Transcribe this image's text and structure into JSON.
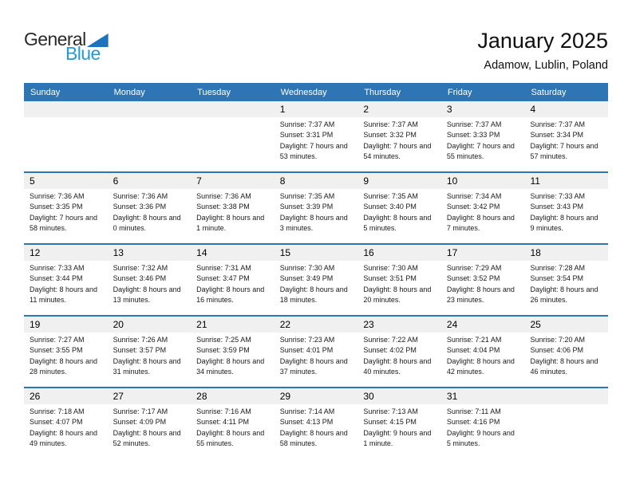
{
  "logo": {
    "general": "General",
    "blue": "Blue"
  },
  "header": {
    "title": "January 2025",
    "subtitle": "Adamow, Lublin, Poland"
  },
  "colors": {
    "header_blue": "#2e75b6",
    "row_divider_blue": "#2e75b6",
    "day_strip_gray": "#f0f0f0",
    "logo_triangle_blue": "#1c75bc",
    "logo_blue_text": "#2499d6"
  },
  "calendar": {
    "weekdays": [
      "Sunday",
      "Monday",
      "Tuesday",
      "Wednesday",
      "Thursday",
      "Friday",
      "Saturday"
    ],
    "weeks": [
      {
        "days": [
          null,
          null,
          null,
          {
            "day": "1",
            "sunrise": "Sunrise: 7:37 AM",
            "sunset": "Sunset: 3:31 PM",
            "daylight": "Daylight: 7 hours and 53 minutes."
          },
          {
            "day": "2",
            "sunrise": "Sunrise: 7:37 AM",
            "sunset": "Sunset: 3:32 PM",
            "daylight": "Daylight: 7 hours and 54 minutes."
          },
          {
            "day": "3",
            "sunrise": "Sunrise: 7:37 AM",
            "sunset": "Sunset: 3:33 PM",
            "daylight": "Daylight: 7 hours and 55 minutes."
          },
          {
            "day": "4",
            "sunrise": "Sunrise: 7:37 AM",
            "sunset": "Sunset: 3:34 PM",
            "daylight": "Daylight: 7 hours and 57 minutes."
          }
        ]
      },
      {
        "days": [
          {
            "day": "5",
            "sunrise": "Sunrise: 7:36 AM",
            "sunset": "Sunset: 3:35 PM",
            "daylight": "Daylight: 7 hours and 58 minutes."
          },
          {
            "day": "6",
            "sunrise": "Sunrise: 7:36 AM",
            "sunset": "Sunset: 3:36 PM",
            "daylight": "Daylight: 8 hours and 0 minutes."
          },
          {
            "day": "7",
            "sunrise": "Sunrise: 7:36 AM",
            "sunset": "Sunset: 3:38 PM",
            "daylight": "Daylight: 8 hours and 1 minute."
          },
          {
            "day": "8",
            "sunrise": "Sunrise: 7:35 AM",
            "sunset": "Sunset: 3:39 PM",
            "daylight": "Daylight: 8 hours and 3 minutes."
          },
          {
            "day": "9",
            "sunrise": "Sunrise: 7:35 AM",
            "sunset": "Sunset: 3:40 PM",
            "daylight": "Daylight: 8 hours and 5 minutes."
          },
          {
            "day": "10",
            "sunrise": "Sunrise: 7:34 AM",
            "sunset": "Sunset: 3:42 PM",
            "daylight": "Daylight: 8 hours and 7 minutes."
          },
          {
            "day": "11",
            "sunrise": "Sunrise: 7:33 AM",
            "sunset": "Sunset: 3:43 PM",
            "daylight": "Daylight: 8 hours and 9 minutes."
          }
        ]
      },
      {
        "days": [
          {
            "day": "12",
            "sunrise": "Sunrise: 7:33 AM",
            "sunset": "Sunset: 3:44 PM",
            "daylight": "Daylight: 8 hours and 11 minutes."
          },
          {
            "day": "13",
            "sunrise": "Sunrise: 7:32 AM",
            "sunset": "Sunset: 3:46 PM",
            "daylight": "Daylight: 8 hours and 13 minutes."
          },
          {
            "day": "14",
            "sunrise": "Sunrise: 7:31 AM",
            "sunset": "Sunset: 3:47 PM",
            "daylight": "Daylight: 8 hours and 16 minutes."
          },
          {
            "day": "15",
            "sunrise": "Sunrise: 7:30 AM",
            "sunset": "Sunset: 3:49 PM",
            "daylight": "Daylight: 8 hours and 18 minutes."
          },
          {
            "day": "16",
            "sunrise": "Sunrise: 7:30 AM",
            "sunset": "Sunset: 3:51 PM",
            "daylight": "Daylight: 8 hours and 20 minutes."
          },
          {
            "day": "17",
            "sunrise": "Sunrise: 7:29 AM",
            "sunset": "Sunset: 3:52 PM",
            "daylight": "Daylight: 8 hours and 23 minutes."
          },
          {
            "day": "18",
            "sunrise": "Sunrise: 7:28 AM",
            "sunset": "Sunset: 3:54 PM",
            "daylight": "Daylight: 8 hours and 26 minutes."
          }
        ]
      },
      {
        "days": [
          {
            "day": "19",
            "sunrise": "Sunrise: 7:27 AM",
            "sunset": "Sunset: 3:55 PM",
            "daylight": "Daylight: 8 hours and 28 minutes."
          },
          {
            "day": "20",
            "sunrise": "Sunrise: 7:26 AM",
            "sunset": "Sunset: 3:57 PM",
            "daylight": "Daylight: 8 hours and 31 minutes."
          },
          {
            "day": "21",
            "sunrise": "Sunrise: 7:25 AM",
            "sunset": "Sunset: 3:59 PM",
            "daylight": "Daylight: 8 hours and 34 minutes."
          },
          {
            "day": "22",
            "sunrise": "Sunrise: 7:23 AM",
            "sunset": "Sunset: 4:01 PM",
            "daylight": "Daylight: 8 hours and 37 minutes."
          },
          {
            "day": "23",
            "sunrise": "Sunrise: 7:22 AM",
            "sunset": "Sunset: 4:02 PM",
            "daylight": "Daylight: 8 hours and 40 minutes."
          },
          {
            "day": "24",
            "sunrise": "Sunrise: 7:21 AM",
            "sunset": "Sunset: 4:04 PM",
            "daylight": "Daylight: 8 hours and 42 minutes."
          },
          {
            "day": "25",
            "sunrise": "Sunrise: 7:20 AM",
            "sunset": "Sunset: 4:06 PM",
            "daylight": "Daylight: 8 hours and 46 minutes."
          }
        ]
      },
      {
        "days": [
          {
            "day": "26",
            "sunrise": "Sunrise: 7:18 AM",
            "sunset": "Sunset: 4:07 PM",
            "daylight": "Daylight: 8 hours and 49 minutes."
          },
          {
            "day": "27",
            "sunrise": "Sunrise: 7:17 AM",
            "sunset": "Sunset: 4:09 PM",
            "daylight": "Daylight: 8 hours and 52 minutes."
          },
          {
            "day": "28",
            "sunrise": "Sunrise: 7:16 AM",
            "sunset": "Sunset: 4:11 PM",
            "daylight": "Daylight: 8 hours and 55 minutes."
          },
          {
            "day": "29",
            "sunrise": "Sunrise: 7:14 AM",
            "sunset": "Sunset: 4:13 PM",
            "daylight": "Daylight: 8 hours and 58 minutes."
          },
          {
            "day": "30",
            "sunrise": "Sunrise: 7:13 AM",
            "sunset": "Sunset: 4:15 PM",
            "daylight": "Daylight: 9 hours and 1 minute."
          },
          {
            "day": "31",
            "sunrise": "Sunrise: 7:11 AM",
            "sunset": "Sunset: 4:16 PM",
            "daylight": "Daylight: 9 hours and 5 minutes."
          },
          null
        ]
      }
    ]
  }
}
